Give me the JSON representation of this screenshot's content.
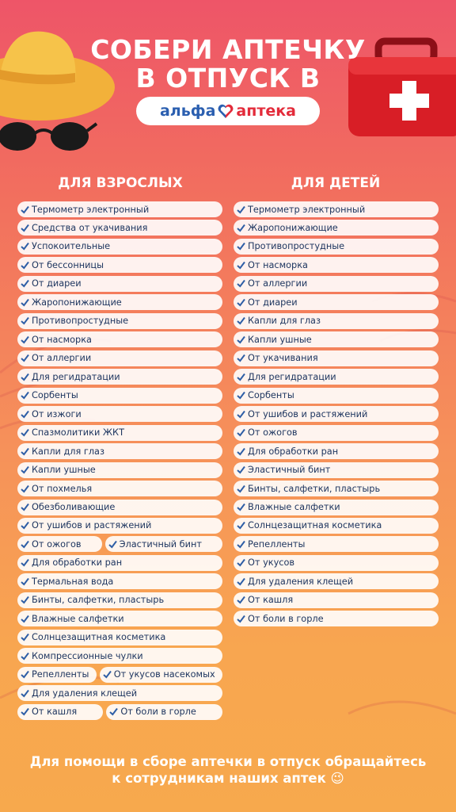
{
  "header": {
    "title_line1": "СОБЕРИ АПТЕЧКУ",
    "title_line2": "В ОТПУСК В",
    "logo_left": "альфа",
    "logo_right": "аптека"
  },
  "adults": {
    "heading": "ДЛЯ ВЗРОСЛЫХ",
    "rows": [
      [
        "Термометр электронный"
      ],
      [
        "Средства от укачивания"
      ],
      [
        "Успокоительные"
      ],
      [
        "От бессонницы"
      ],
      [
        "От диареи"
      ],
      [
        "Жаропонижающие"
      ],
      [
        "Противопростудные"
      ],
      [
        "От насморка"
      ],
      [
        "От аллергии"
      ],
      [
        "Для регидратации"
      ],
      [
        "Сорбенты"
      ],
      [
        "От изжоги"
      ],
      [
        "Спазмолитики ЖКТ"
      ],
      [
        "Капли для глаз"
      ],
      [
        "Капли ушные"
      ],
      [
        "От похмелья"
      ],
      [
        "Обезболивающие"
      ],
      [
        "От ушибов и растяжений"
      ],
      [
        "От ожогов",
        "Эластичный бинт"
      ],
      [
        "Для обработки ран"
      ],
      [
        "Термальная вода"
      ],
      [
        "Бинты, салфетки, пластырь"
      ],
      [
        "Влажные салфетки"
      ],
      [
        "Солнцезащитная косметика"
      ],
      [
        "Компрессионные чулки"
      ],
      [
        "Репелленты",
        "От укусов насекомых"
      ],
      [
        "Для удаления клещей"
      ],
      [
        "От кашля",
        "От боли в горле"
      ]
    ]
  },
  "kids": {
    "heading": "ДЛЯ ДЕТЕЙ",
    "rows": [
      [
        "Термометр электронный"
      ],
      [
        "Жаропонижающие"
      ],
      [
        "Противопростудные"
      ],
      [
        "От насморка"
      ],
      [
        "От аллергии"
      ],
      [
        "От диареи"
      ],
      [
        "Капли для глаз"
      ],
      [
        "Капли ушные"
      ],
      [
        "От укачивания"
      ],
      [
        "Для регидратации"
      ],
      [
        "Сорбенты"
      ],
      [
        "От ушибов и растяжений"
      ],
      [
        "От ожогов"
      ],
      [
        "Для обработки ран"
      ],
      [
        "Эластичный бинт"
      ],
      [
        "Бинты, салфетки, пластырь"
      ],
      [
        "Влажные салфетки"
      ],
      [
        "Солнцезащитная косметика"
      ],
      [
        "Репелленты"
      ],
      [
        "От укусов"
      ],
      [
        "Для удаления клещей"
      ],
      [
        "От кашля"
      ],
      [
        "От боли в горле"
      ]
    ]
  },
  "footer": {
    "line1": "Для помощи в сборе аптечки в отпуск обращайтесь",
    "line2": "к сотрудникам наших аптек 😉"
  }
}
